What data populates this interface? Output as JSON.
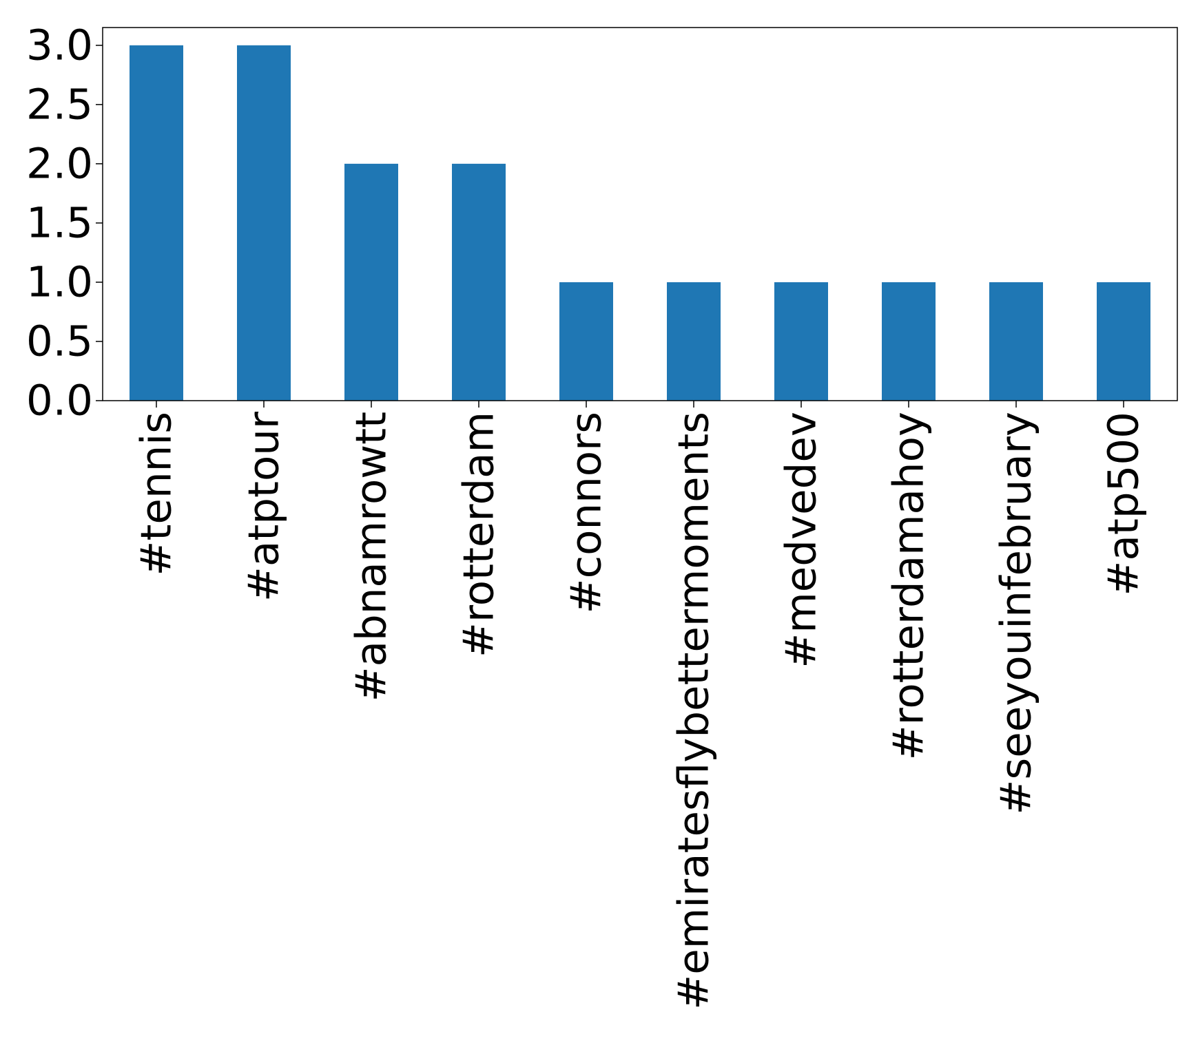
{
  "chart_data": {
    "type": "bar",
    "title": "",
    "xlabel": "",
    "ylabel": "",
    "categories": [
      "#tennis",
      "#atptour",
      "#abnamrowtt",
      "#rotterdam",
      "#connors",
      "#emiratesflybettermoments",
      "#medvedev",
      "#rotterdamahoy",
      "#seeyouinfebruary",
      "#atp500"
    ],
    "values": [
      3,
      3,
      2,
      2,
      1,
      1,
      1,
      1,
      1,
      1
    ],
    "ylim": [
      0,
      3.15
    ],
    "yticks": [
      "0.0",
      "0.5",
      "1.0",
      "1.5",
      "2.0",
      "2.5",
      "3.0"
    ],
    "grid": false,
    "bar_color": "#1f77b4"
  }
}
